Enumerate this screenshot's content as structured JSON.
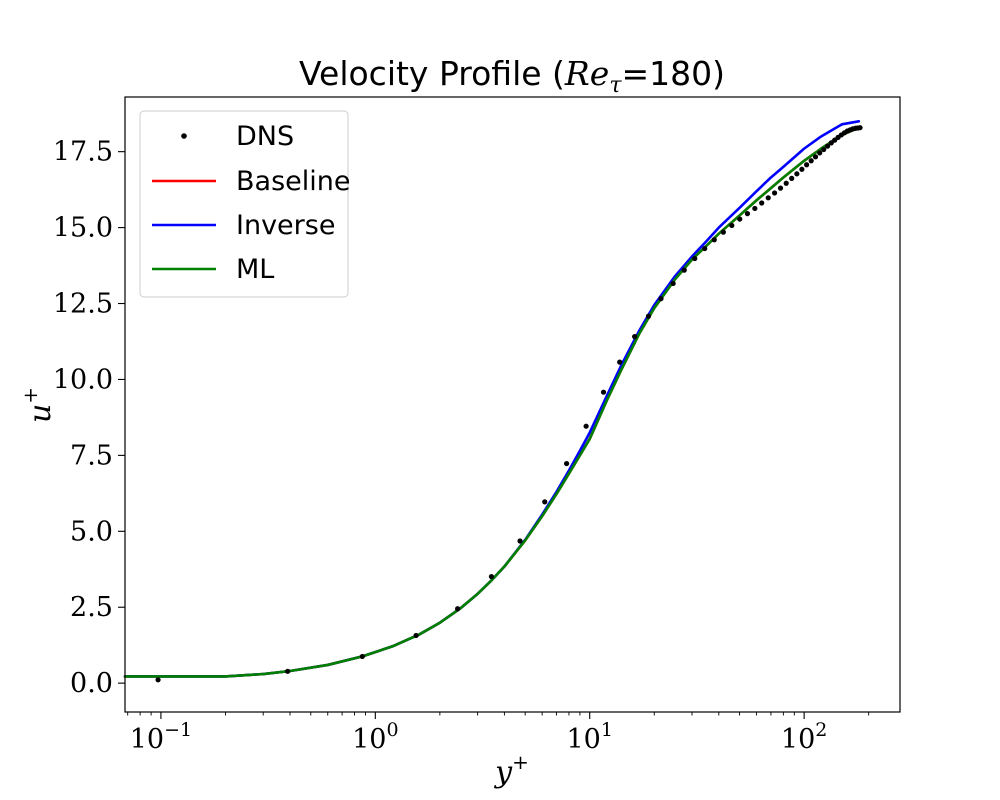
{
  "chart_data": {
    "type": "line",
    "title": {
      "prefix": "Velocity Profile (",
      "re_symbol": "Re",
      "re_subscript": "τ",
      "suffix": "=180)"
    },
    "xlabel": {
      "base": "y",
      "sup": "+"
    },
    "ylabel": {
      "base": "u",
      "sup": "+"
    },
    "x_scale": "log",
    "xlim": [
      0.068,
      280
    ],
    "ylim": [
      -0.95,
      19.3
    ],
    "x_ticks": [
      {
        "value": 0.1,
        "base": "10",
        "exp": "−1"
      },
      {
        "value": 1,
        "base": "10",
        "exp": "0"
      },
      {
        "value": 10,
        "base": "10",
        "exp": "1"
      },
      {
        "value": 100,
        "base": "10",
        "exp": "2"
      }
    ],
    "y_ticks": [
      {
        "value": 0.0,
        "label": "0.0"
      },
      {
        "value": 2.5,
        "label": "2.5"
      },
      {
        "value": 5.0,
        "label": "5.0"
      },
      {
        "value": 7.5,
        "label": "7.5"
      },
      {
        "value": 10.0,
        "label": "10.0"
      },
      {
        "value": 12.5,
        "label": "12.5"
      },
      {
        "value": 15.0,
        "label": "15.0"
      },
      {
        "value": 17.5,
        "label": "17.5"
      }
    ],
    "grid": false,
    "legend_position": "top-left",
    "series": [
      {
        "name": "DNS",
        "style": "markers",
        "color": "#000000",
        "x": [
          0.097,
          0.39,
          0.87,
          1.55,
          2.42,
          3.48,
          4.73,
          6.17,
          7.8,
          9.62,
          11.6,
          13.8,
          16.2,
          18.8,
          21.5,
          24.5,
          27.6,
          30.9,
          34.4,
          38.1,
          42.0,
          46.0,
          50.1,
          54.4,
          58.9,
          63.4,
          68.0,
          72.8,
          77.6,
          82.5,
          87.5,
          92.5,
          97.6,
          102.7,
          107.9,
          113.0,
          118.2,
          123.4,
          128.6,
          133.8,
          138.9,
          144.0,
          149.1,
          154.1,
          159.1,
          164.0,
          168.8,
          173.5,
          178.0,
          182.3
        ],
        "y": [
          0.11,
          0.39,
          0.88,
          1.57,
          2.45,
          3.51,
          4.68,
          5.97,
          7.23,
          8.46,
          9.58,
          10.57,
          11.41,
          12.08,
          12.66,
          13.16,
          13.6,
          13.98,
          14.31,
          14.6,
          14.85,
          15.07,
          15.28,
          15.46,
          15.63,
          15.81,
          15.98,
          16.14,
          16.3,
          16.46,
          16.62,
          16.77,
          16.92,
          17.07,
          17.2,
          17.33,
          17.46,
          17.57,
          17.68,
          17.79,
          17.88,
          17.97,
          18.05,
          18.12,
          18.18,
          18.22,
          18.25,
          18.27,
          18.28,
          18.29
        ]
      },
      {
        "name": "Baseline",
        "style": "line",
        "color": "#ff0000",
        "x": [
          0.068,
          0.2,
          0.3,
          0.4,
          0.6,
          0.87,
          1.2,
          1.6,
          2.0,
          2.5,
          3.0,
          3.5,
          4.0,
          5.0,
          6.0,
          7.0,
          8.0,
          9.0,
          10.0,
          12.0,
          14.0,
          17.0,
          20.0,
          25.0,
          30.0,
          35.0,
          40.0,
          50.0,
          60.0,
          70.0,
          80.0,
          100.0,
          120.0,
          150.0,
          180.0
        ],
        "y": [
          0.22,
          0.22,
          0.3,
          0.4,
          0.6,
          0.88,
          1.21,
          1.6,
          1.99,
          2.47,
          2.94,
          3.4,
          3.84,
          4.7,
          5.5,
          6.23,
          6.9,
          7.5,
          8.04,
          9.3,
          10.3,
          11.5,
          12.35,
          13.3,
          13.95,
          14.4,
          14.8,
          15.4,
          15.9,
          16.3,
          16.65,
          17.2,
          17.6,
          18.05,
          18.29
        ]
      },
      {
        "name": "Inverse",
        "style": "line",
        "color": "#0000ff",
        "x": [
          0.068,
          0.2,
          0.3,
          0.4,
          0.6,
          0.87,
          1.2,
          1.6,
          2.0,
          2.5,
          3.0,
          3.5,
          4.0,
          5.0,
          6.0,
          7.0,
          8.0,
          9.0,
          10.0,
          12.0,
          14.0,
          17.0,
          20.0,
          25.0,
          30.0,
          35.0,
          40.0,
          50.0,
          60.0,
          70.0,
          80.0,
          100.0,
          120.0,
          150.0,
          180.0
        ],
        "y": [
          0.22,
          0.22,
          0.3,
          0.4,
          0.6,
          0.88,
          1.21,
          1.6,
          1.99,
          2.47,
          2.94,
          3.4,
          3.84,
          4.72,
          5.55,
          6.3,
          7.0,
          7.65,
          8.25,
          9.45,
          10.45,
          11.6,
          12.45,
          13.4,
          14.05,
          14.55,
          15.0,
          15.65,
          16.2,
          16.65,
          17.0,
          17.6,
          18.0,
          18.4,
          18.5
        ]
      },
      {
        "name": "ML",
        "style": "line",
        "color": "#008000",
        "x": [
          0.068,
          0.2,
          0.3,
          0.4,
          0.6,
          0.87,
          1.2,
          1.6,
          2.0,
          2.5,
          3.0,
          3.5,
          4.0,
          5.0,
          6.0,
          7.0,
          8.0,
          9.0,
          10.0,
          12.0,
          14.0,
          17.0,
          20.0,
          25.0,
          30.0,
          35.0,
          40.0,
          50.0,
          60.0,
          70.0,
          80.0,
          100.0,
          120.0,
          150.0,
          180.0
        ],
        "y": [
          0.22,
          0.22,
          0.3,
          0.4,
          0.6,
          0.88,
          1.21,
          1.6,
          1.99,
          2.47,
          2.94,
          3.4,
          3.84,
          4.7,
          5.5,
          6.23,
          6.9,
          7.5,
          8.04,
          9.3,
          10.3,
          11.5,
          12.35,
          13.3,
          13.95,
          14.4,
          14.8,
          15.4,
          15.9,
          16.3,
          16.65,
          17.2,
          17.6,
          18.05,
          18.29
        ]
      }
    ]
  }
}
